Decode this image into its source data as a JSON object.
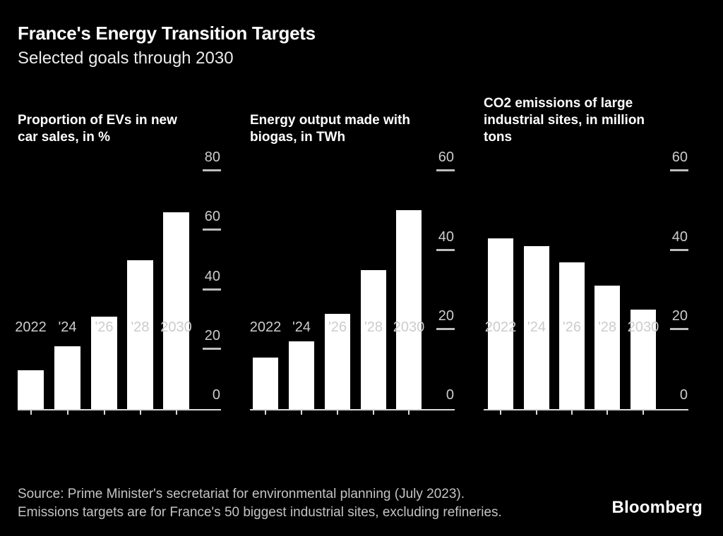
{
  "header": {
    "title": "France's Energy Transition Targets",
    "subtitle": "Selected goals through 2030"
  },
  "footer": {
    "source_line1": "Source: Prime Minister's secretariat for environmental planning (July 2023).",
    "source_line2": "Emissions targets are for France's 50 biggest industrial sites, excluding refineries.",
    "brand": "Bloomberg"
  },
  "colors": {
    "background": "#000000",
    "bar": "#ffffff",
    "title_text": "#ffffff",
    "subtitle_text": "#ececec",
    "axis_text": "#cccccc",
    "axis_line": "#d9d9d9",
    "tick": "#bdbdbd",
    "source_text": "#c4c4c4"
  },
  "chart_data": [
    {
      "type": "bar",
      "title": "Proportion of EVs in new car sales, in %",
      "title_lines": [
        "Proportion of EVs in new",
        "car sales, in %"
      ],
      "categories": [
        "2022",
        "'24",
        "'26",
        "'28",
        "2030"
      ],
      "values": [
        13,
        21,
        31,
        50,
        66
      ],
      "xlabel": "",
      "ylabel": "%",
      "ylim": [
        0,
        80
      ],
      "yticks": [
        0,
        20,
        40,
        60,
        80
      ],
      "grid": false,
      "legend": "none",
      "ytick_side": "right"
    },
    {
      "type": "bar",
      "title": "Energy output made with biogas, in TWh",
      "title_lines": [
        "Energy output made with",
        "biogas, in TWh"
      ],
      "categories": [
        "2022",
        "'24",
        "'26",
        "'28",
        "2030"
      ],
      "values": [
        13,
        17,
        24,
        35,
        50
      ],
      "xlabel": "",
      "ylabel": "TWh",
      "ylim": [
        0,
        60
      ],
      "yticks": [
        0,
        20,
        40,
        60
      ],
      "grid": false,
      "legend": "none",
      "ytick_side": "right"
    },
    {
      "type": "bar",
      "title": "CO2 emissions of large industrial sites, in million tons",
      "title_lines": [
        "CO2 emissions of large",
        "industrial sites, in million",
        "tons"
      ],
      "categories": [
        "2022",
        "'24",
        "'26",
        "'28",
        "2030"
      ],
      "values": [
        43,
        41,
        37,
        31,
        25
      ],
      "xlabel": "",
      "ylabel": "million tons",
      "ylim": [
        0,
        60
      ],
      "yticks": [
        0,
        20,
        40,
        60
      ],
      "grid": false,
      "legend": "none",
      "ytick_side": "right"
    }
  ]
}
